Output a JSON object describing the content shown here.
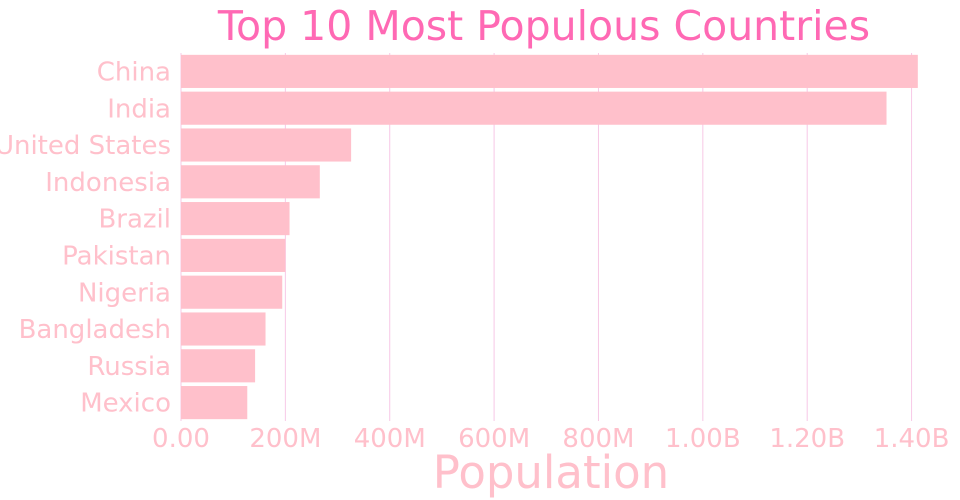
{
  "chart_data": {
    "type": "bar",
    "orientation": "horizontal",
    "title": "Top 10 Most Populous Countries",
    "xlabel": "Population",
    "ylabel": "",
    "categories": [
      "China",
      "India",
      "United States",
      "Indonesia",
      "Brazil",
      "Pakistan",
      "Nigeria",
      "Bangladesh",
      "Russia",
      "Mexico"
    ],
    "values": [
      1412000000,
      1352000000,
      326000000,
      266000000,
      208000000,
      200000000,
      194000000,
      162000000,
      142000000,
      127000000
    ],
    "xlim": [
      0,
      1420000000
    ],
    "xticks": [
      0,
      200000000,
      400000000,
      600000000,
      800000000,
      1000000000,
      1200000000,
      1400000000
    ],
    "xtick_labels": [
      "0.00",
      "200M",
      "400M",
      "600M",
      "800M",
      "1.00B",
      "1.20B",
      "1.40B"
    ],
    "grid": "vertical",
    "legend": "none",
    "colors": {
      "bar": "#ffc0cb",
      "title": "#ff69b4",
      "labels": "#ffc0cb",
      "grid": "#f7c8e6",
      "background": "#ffffff"
    }
  }
}
